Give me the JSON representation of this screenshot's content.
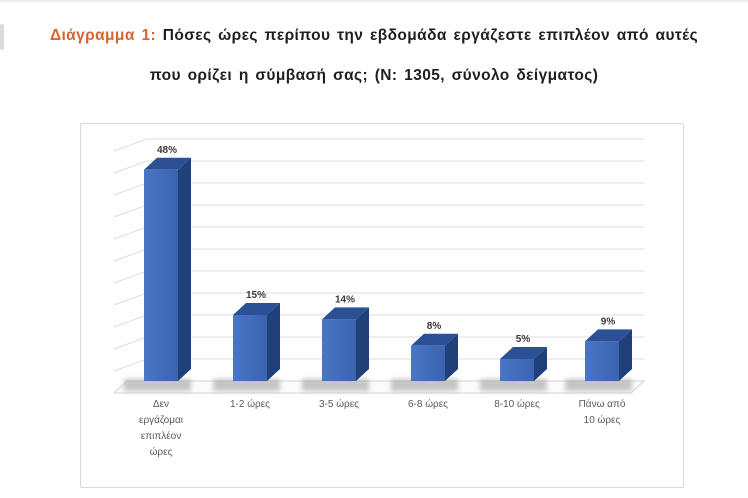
{
  "page": {
    "background": "#ffffff"
  },
  "caption": {
    "prefix": "Διάγραμμα 1:",
    "line1_rest": " Πόσες ώρες περίπου την εβδομάδα εργάζεστε επιπλέον από αυτές",
    "line2": "που ορίζει η σύμβασή σας; (N: 1305, σύνολο δείγματος)",
    "prefix_color": "#d9632e"
  },
  "chart_data": {
    "type": "bar",
    "style": "3d-column",
    "title": "Πόσες ώρες περίπου την εβδομάδα εργάζεστε επιπλέον από αυτές που ορίζει η σύμβασή σας; (N: 1305, σύνολο δείγματος)",
    "sample_note": "N: 1305, σύνολο δείγματος",
    "categories": [
      "Δεν εργάζομαι επιπλέον ώρες",
      "1-2 ώρες",
      "3-5 ώρες",
      "6-8 ώρες",
      "8-10 ώρες",
      "Πάνω από 10 ώρες"
    ],
    "categories_wrapped": [
      [
        "Δεν",
        "εργάζομαι",
        "επιπλέον",
        "ώρες"
      ],
      [
        "1-2 ώρες"
      ],
      [
        "3-5 ώρες"
      ],
      [
        "6-8 ώρες"
      ],
      [
        "8-10 ώρες"
      ],
      [
        "Πάνω από",
        "10 ώρες"
      ]
    ],
    "values": [
      48,
      15,
      14,
      8,
      5,
      9
    ],
    "data_labels": [
      "48%",
      "15%",
      "14%",
      "8%",
      "5%",
      "9%"
    ],
    "unit": "percent",
    "ylim": [
      0,
      55
    ],
    "gridline_step": 5,
    "grid": true,
    "legend": false,
    "xlabel": "",
    "ylabel": "",
    "colors": {
      "bar_front": "#3a63b0",
      "bar_front_light": "#4a76c6",
      "bar_side": "#20407a",
      "bar_top": "#2b5096",
      "gridline": "#dcdcdc",
      "floor_edge": "#d3d3d3",
      "data_label": "#3a3a3a",
      "category_label": "#595959",
      "frame_border": "#d9d9d9",
      "shadow": "#8f8f8f"
    }
  }
}
